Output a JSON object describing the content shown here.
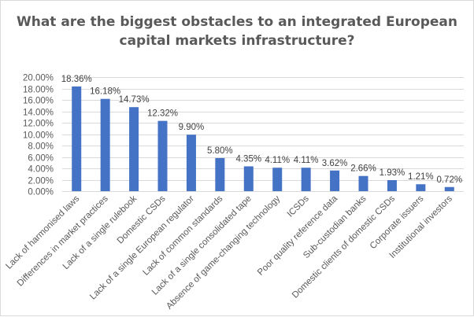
{
  "chart_data": {
    "type": "bar",
    "title": [
      "What are the biggest obstacles to an integrated European",
      "capital markets infrastructure?"
    ],
    "xlabel": "",
    "ylabel": "",
    "ylim": [
      0,
      20
    ],
    "ytick_step": 2,
    "ytick_format": "percent_2dp",
    "grid": true,
    "legend": "none",
    "bar_color": "#4472c4",
    "categories": [
      "Lack of harmonised laws",
      "Differences in market practices",
      "Lack of a single rulebook",
      "Domestic CSDs",
      "Lack of a single European  regulator",
      "Lack of common standards",
      "Lack of a single consolidated tape",
      "Absence of game-changing technology",
      "ICSDs",
      "Poor quality reference data",
      "Sub-custodian banks",
      "Domestic clients of domestic CSDs",
      "Corporate issuers",
      "Institutional investors"
    ],
    "values": [
      18.36,
      16.18,
      14.73,
      12.32,
      9.9,
      5.8,
      4.35,
      4.11,
      4.11,
      3.62,
      2.66,
      1.93,
      1.21,
      0.72
    ],
    "data_labels": [
      "18.36%",
      "16.18%",
      "14.73%",
      "12.32%",
      "9.90%",
      "5.80%",
      "4.35%",
      "4.11%",
      "4.11%",
      "3.62%",
      "2.66%",
      "1.93%",
      "1.21%",
      "0.72%"
    ],
    "yticks": [
      "0.00%",
      "2.00%",
      "4.00%",
      "6.00%",
      "8.00%",
      "10.00%",
      "12.00%",
      "14.00%",
      "16.00%",
      "18.00%",
      "20.00%"
    ]
  }
}
